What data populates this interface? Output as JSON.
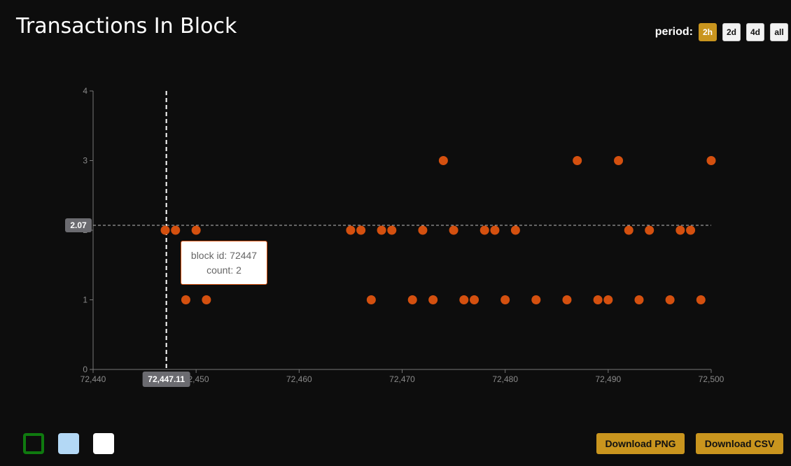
{
  "header": {
    "title": "Transactions In Block",
    "period_label": "period:",
    "period_options": [
      "2h",
      "2d",
      "4d",
      "all"
    ],
    "period_selected": "2h"
  },
  "colors": {
    "accent": "#c9951e",
    "point": "#d4500f",
    "background": "#0d0d0d"
  },
  "chart_data": {
    "type": "scatter",
    "title": "Transactions In Block",
    "xlabel": "",
    "ylabel": "",
    "xlim": [
      72440,
      72500
    ],
    "ylim": [
      0,
      4
    ],
    "x_ticks": [
      72440,
      72450,
      72460,
      72470,
      72480,
      72490,
      72500
    ],
    "x_tick_labels": [
      "72,440",
      "72,450",
      "72,460",
      "72,470",
      "72,480",
      "72,490",
      "72,500"
    ],
    "y_ticks": [
      0,
      1,
      2,
      3,
      4
    ],
    "y_tick_labels": [
      "0",
      "1",
      "2",
      "3",
      "4"
    ],
    "grid": false,
    "series": [
      {
        "points": [
          [
            72447,
            2
          ],
          [
            72448,
            2
          ],
          [
            72449,
            1
          ],
          [
            72450,
            2
          ],
          [
            72451,
            1
          ],
          [
            72465,
            2
          ],
          [
            72466,
            2
          ],
          [
            72467,
            1
          ],
          [
            72468,
            2
          ],
          [
            72469,
            2
          ],
          [
            72471,
            1
          ],
          [
            72472,
            2
          ],
          [
            72473,
            1
          ],
          [
            72474,
            3
          ],
          [
            72475,
            2
          ],
          [
            72476,
            1
          ],
          [
            72477,
            1
          ],
          [
            72478,
            2
          ],
          [
            72479,
            2
          ],
          [
            72480,
            1
          ],
          [
            72481,
            2
          ],
          [
            72483,
            1
          ],
          [
            72486,
            1
          ],
          [
            72487,
            3
          ],
          [
            72489,
            1
          ],
          [
            72490,
            1
          ],
          [
            72491,
            3
          ],
          [
            72492,
            2
          ],
          [
            72493,
            1
          ],
          [
            72494,
            2
          ],
          [
            72496,
            1
          ],
          [
            72497,
            2
          ],
          [
            72498,
            2
          ],
          [
            72499,
            1
          ],
          [
            72500,
            3
          ]
        ]
      }
    ],
    "crosshair": {
      "x": 72447.11,
      "y": 2.07,
      "x_label": "72,447.11",
      "y_label": "2.07"
    },
    "tooltip": {
      "line1": "block id: 72447",
      "line2": "count: 2"
    }
  },
  "legend_swatches": [
    {
      "name": "green-outline",
      "color": "#0f7a0f",
      "style": "outline"
    },
    {
      "name": "light-blue",
      "color": "#b3d8f5",
      "style": "fill"
    },
    {
      "name": "white",
      "color": "#ffffff",
      "style": "fill"
    }
  ],
  "footer": {
    "download_png": "Download PNG",
    "download_csv": "Download CSV"
  }
}
